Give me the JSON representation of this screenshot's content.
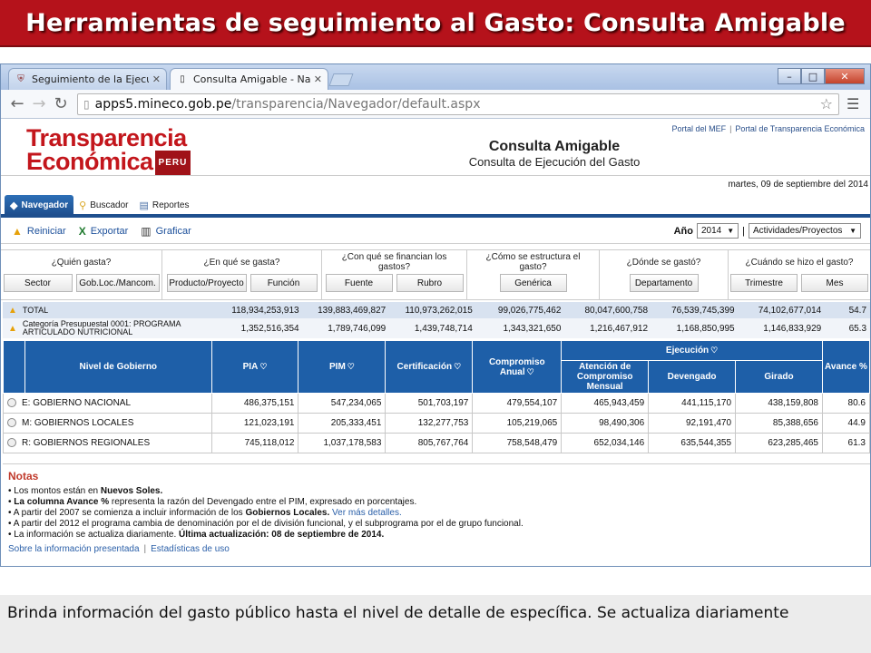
{
  "slide": {
    "title": "Herramientas de seguimiento al Gasto: Consulta Amigable",
    "caption": "Brinda información del  gasto público hasta el nivel de detalle de específica. Se actualiza diariamente"
  },
  "browser": {
    "tabs": [
      {
        "label": "Seguimiento de la Ejecución",
        "icon": "crest-icon"
      },
      {
        "label": "Consulta Amigable - Nave",
        "icon": "page-icon"
      }
    ],
    "url_host": "apps5.mineco.gob.pe",
    "url_path": "/transparencia/Navegador/default.aspx"
  },
  "page": {
    "brand_line1": "Transparencia",
    "brand_line2": "Económica",
    "brand_tag": "PERU",
    "top_links": [
      "Portal del MEF",
      "Portal de Transparencia Económica"
    ],
    "title": "Consulta Amigable",
    "subtitle": "Consulta de Ejecución del Gasto",
    "date": "martes, 09 de septiembre del 2014",
    "tabs": [
      "Navegador",
      "Buscador",
      "Reportes"
    ],
    "toolbar": {
      "reiniciar": "Reiniciar",
      "exportar": "Exportar",
      "graficar": "Graficar"
    },
    "year_label": "Año",
    "year_value": "2014",
    "scope_value": "Actividades/Proyectos",
    "questions": [
      {
        "q": "¿Quién gasta?",
        "buttons": [
          "Sector",
          "Gob.Loc./Mancom."
        ]
      },
      {
        "q": "¿En qué se gasta?",
        "buttons": [
          "Producto/Proyecto",
          "Función"
        ]
      },
      {
        "q": "¿Con qué se financian los gastos?",
        "buttons": [
          "Fuente",
          "Rubro"
        ]
      },
      {
        "q": "¿Cómo se estructura el gasto?",
        "buttons": [
          "Genérica"
        ]
      },
      {
        "q": "¿Dónde se gastó?",
        "buttons": [
          "Departamento"
        ]
      },
      {
        "q": "¿Cuándo se hizo el gasto?",
        "buttons": [
          "Trimestre",
          "Mes"
        ]
      }
    ],
    "totals": [
      {
        "label": "TOTAL",
        "values": [
          "118,934,253,913",
          "139,883,469,827",
          "110,973,262,015",
          "99,026,775,462",
          "80,047,600,758",
          "76,539,745,399",
          "74,102,677,014",
          "54.7"
        ]
      },
      {
        "label": "Categoría Presupuestal 0001: PROGRAMA ARTICULADO NUTRICIONAL",
        "values": [
          "1,352,516,354",
          "1,789,746,099",
          "1,439,748,714",
          "1,343,321,650",
          "1,216,467,912",
          "1,168,850,995",
          "1,146,833,929",
          "65.3"
        ]
      }
    ],
    "table": {
      "headers": {
        "nivel": "Nivel de Gobierno",
        "pia": "PIA",
        "pim": "PIM",
        "cert": "Certificación",
        "comp": "Compromiso Anual",
        "ejec": "Ejecución",
        "aten": "Atención de Compromiso Mensual",
        "dev": "Devengado",
        "gir": "Girado",
        "avance": "Avance %"
      },
      "rows": [
        {
          "label": "E: GOBIERNO NACIONAL",
          "values": [
            "486,375,151",
            "547,234,065",
            "501,703,197",
            "479,554,107",
            "465,943,459",
            "441,115,170",
            "438,159,808",
            "80.6"
          ]
        },
        {
          "label": "M: GOBIERNOS LOCALES",
          "values": [
            "121,023,191",
            "205,333,451",
            "132,277,753",
            "105,219,065",
            "98,490,306",
            "92,191,470",
            "85,388,656",
            "44.9"
          ]
        },
        {
          "label": "R: GOBIERNOS REGIONALES",
          "values": [
            "745,118,012",
            "1,037,178,583",
            "805,767,764",
            "758,548,479",
            "652,034,146",
            "635,544,355",
            "623,285,465",
            "61.3"
          ]
        }
      ]
    },
    "notes": {
      "title": "Notas",
      "items": [
        {
          "pre": "Los montos están en ",
          "bold": "Nuevos Soles.",
          "post": ""
        },
        {
          "pre": "",
          "bold": "La columna Avance %",
          "post": " representa la razón del Devengado entre el PIM, expresado en porcentajes."
        },
        {
          "pre": "A partir del 2007 se comienza a incluir información de los ",
          "bold": "Gobiernos Locales.",
          "post": " ",
          "link": "Ver más detalles."
        },
        {
          "pre": "A partir del 2012 el programa cambia de denominación por el de división funcional, y el subprograma por el de grupo funcional.",
          "bold": "",
          "post": ""
        },
        {
          "pre": "La información se actualiza diariamente. ",
          "bold": "Última actualización: 08 de septiembre de 2014.",
          "post": ""
        }
      ],
      "footer_links": [
        "Sobre la información presentada",
        "Estadísticas de uso"
      ]
    }
  },
  "colors": {
    "header_red": "#b5121b",
    "table_blue": "#1e5fa8",
    "brand_red": "#c3161c"
  }
}
